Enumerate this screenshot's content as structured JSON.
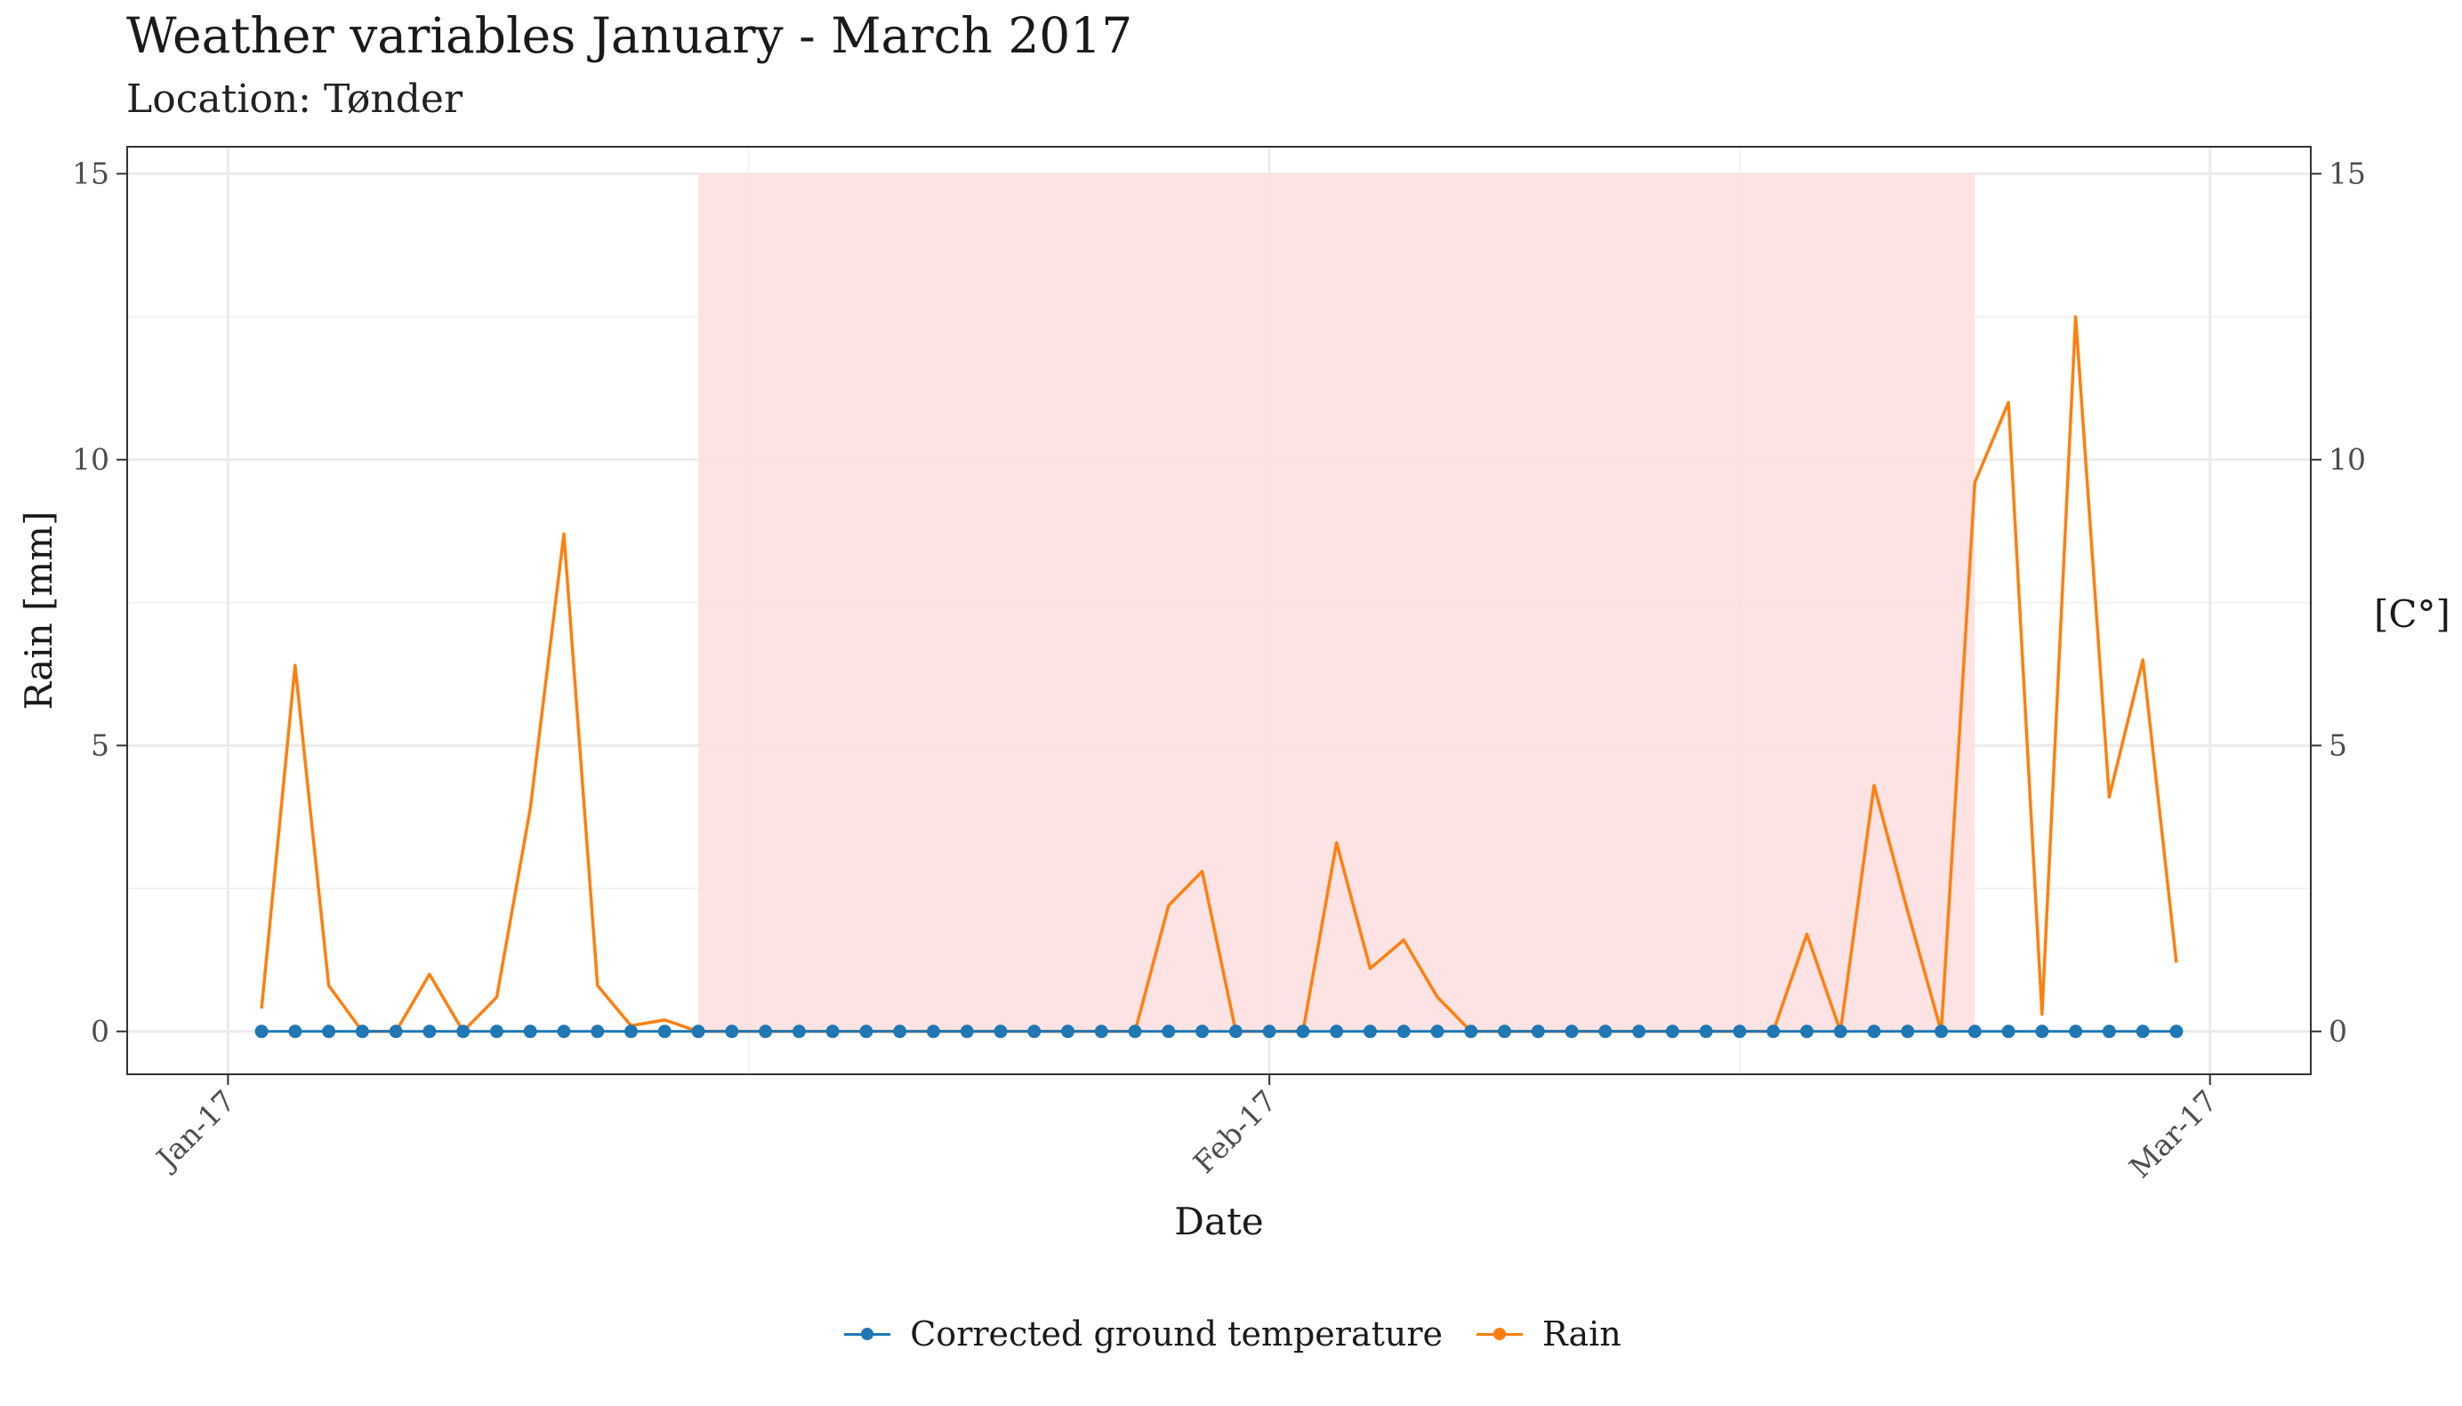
{
  "title": "Weather variables January - March 2017",
  "subtitle": "Location: Tønder",
  "chart_data": {
    "type": "line",
    "xlabel": "Date",
    "ylabel": "Rain [mm]",
    "y2label": "[C°]",
    "xlim": [
      "2016-12-29",
      "2017-03-04"
    ],
    "ylim": [
      -0.75,
      15.0
    ],
    "y2lim": [
      -0.75,
      15.0
    ],
    "x_ticks": [
      {
        "date": "2017-01-01",
        "label": "Jan-17"
      },
      {
        "date": "2017-02-01",
        "label": "Feb-17"
      },
      {
        "date": "2017-03-01",
        "label": "Mar-17"
      }
    ],
    "y_ticks": [
      0,
      5,
      10,
      15
    ],
    "y2_ticks": [
      0,
      5,
      10,
      15
    ],
    "grid": true,
    "legend_position": "bottom",
    "shaded_period": {
      "start": "2017-01-15",
      "end": "2017-02-22",
      "ymax": 15,
      "color": "#fde0e0"
    },
    "x": [
      "2017-01-02",
      "2017-01-03",
      "2017-01-04",
      "2017-01-05",
      "2017-01-06",
      "2017-01-07",
      "2017-01-08",
      "2017-01-09",
      "2017-01-10",
      "2017-01-11",
      "2017-01-12",
      "2017-01-13",
      "2017-01-14",
      "2017-01-15",
      "2017-01-16",
      "2017-01-17",
      "2017-01-18",
      "2017-01-19",
      "2017-01-20",
      "2017-01-21",
      "2017-01-22",
      "2017-01-23",
      "2017-01-24",
      "2017-01-25",
      "2017-01-26",
      "2017-01-27",
      "2017-01-28",
      "2017-01-29",
      "2017-01-30",
      "2017-01-31",
      "2017-02-01",
      "2017-02-02",
      "2017-02-03",
      "2017-02-04",
      "2017-02-05",
      "2017-02-06",
      "2017-02-07",
      "2017-02-08",
      "2017-02-09",
      "2017-02-10",
      "2017-02-11",
      "2017-02-12",
      "2017-02-13",
      "2017-02-14",
      "2017-02-15",
      "2017-02-16",
      "2017-02-17",
      "2017-02-18",
      "2017-02-19",
      "2017-02-20",
      "2017-02-21",
      "2017-02-22",
      "2017-02-23",
      "2017-02-24",
      "2017-02-25",
      "2017-02-26",
      "2017-02-27",
      "2017-02-28"
    ],
    "series": [
      {
        "name": "Corrected ground temperature",
        "color": "#1f77b4",
        "marker": "point",
        "values": [
          0,
          0,
          0,
          0,
          0,
          0,
          0,
          0,
          0,
          0,
          0,
          0,
          0,
          0,
          0,
          0,
          0,
          0,
          0,
          0,
          0,
          0,
          0,
          0,
          0,
          0,
          0,
          0,
          0,
          0,
          0,
          0,
          0,
          0,
          0,
          0,
          0,
          0,
          0,
          0,
          0,
          0,
          0,
          0,
          0,
          0,
          0,
          0,
          0,
          0,
          0,
          0,
          0,
          0,
          0,
          0,
          0,
          0
        ]
      },
      {
        "name": "Rain",
        "color": "#ff7f0e",
        "marker": "line",
        "values": [
          0.4,
          6.4,
          0.8,
          0,
          0,
          1.0,
          0,
          0.6,
          3.9,
          8.7,
          0.8,
          0.1,
          0.2,
          0,
          0,
          0,
          0,
          0,
          0,
          0,
          0,
          0,
          0,
          0,
          0,
          0,
          0,
          2.2,
          2.8,
          0,
          0,
          0,
          3.3,
          1.1,
          1.6,
          0.6,
          0,
          0,
          0,
          0,
          0,
          0,
          0,
          0,
          0,
          0,
          1.7,
          0,
          4.3,
          2.1,
          0,
          9.6,
          11.0,
          0.3,
          12.5,
          4.1,
          6.5,
          1.2
        ]
      }
    ]
  }
}
